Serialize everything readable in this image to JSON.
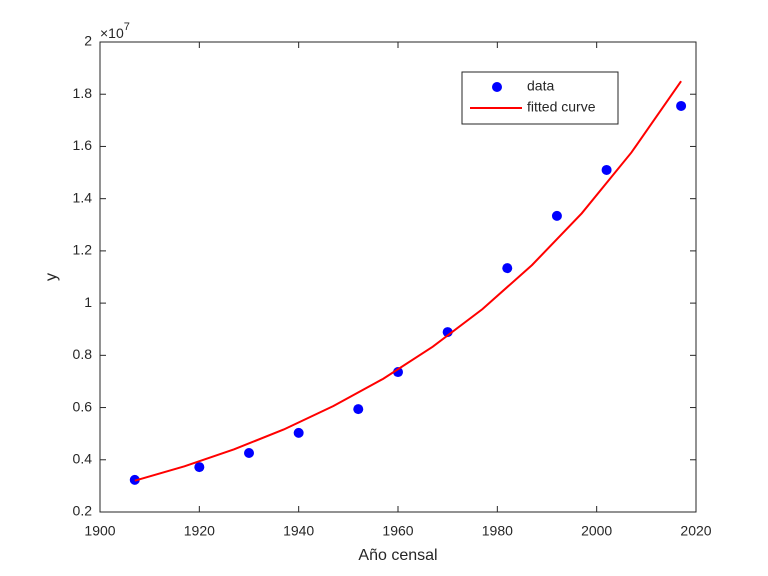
{
  "chart_data": {
    "type": "line",
    "x_label": "Año censal",
    "y_label": "y",
    "y_exponent_base": "×10",
    "y_exponent": "7",
    "xlim": [
      1900,
      2020
    ],
    "xticks": [
      1900,
      1920,
      1940,
      1960,
      1980,
      2000,
      2020
    ],
    "ylim": [
      0.2,
      2
    ],
    "yticks": [
      0.2,
      0.4,
      0.6,
      0.8,
      1,
      1.2,
      1.4,
      1.6,
      1.8,
      2
    ],
    "grid": false,
    "legend": "northeast",
    "series": [
      {
        "name": "data",
        "color": "#0000ff",
        "style": "markers",
        "x": [
          1907,
          1920,
          1930,
          1940,
          1952,
          1960,
          1970,
          1982,
          1992,
          2002,
          2017
        ],
        "values": [
          0.323,
          0.372,
          0.426,
          0.503,
          0.594,
          0.736,
          0.889,
          1.134,
          1.334,
          1.51,
          1.755
        ]
      },
      {
        "name": "fitted curve",
        "color": "#ff0000",
        "style": "line",
        "x": [
          1907,
          1917,
          1927,
          1937,
          1947,
          1957,
          1967,
          1977,
          1987,
          1997,
          2007,
          2017
        ],
        "values": [
          0.32,
          0.375,
          0.44,
          0.516,
          0.606,
          0.71,
          0.833,
          0.977,
          1.146,
          1.344,
          1.577,
          1.85
        ]
      }
    ]
  }
}
